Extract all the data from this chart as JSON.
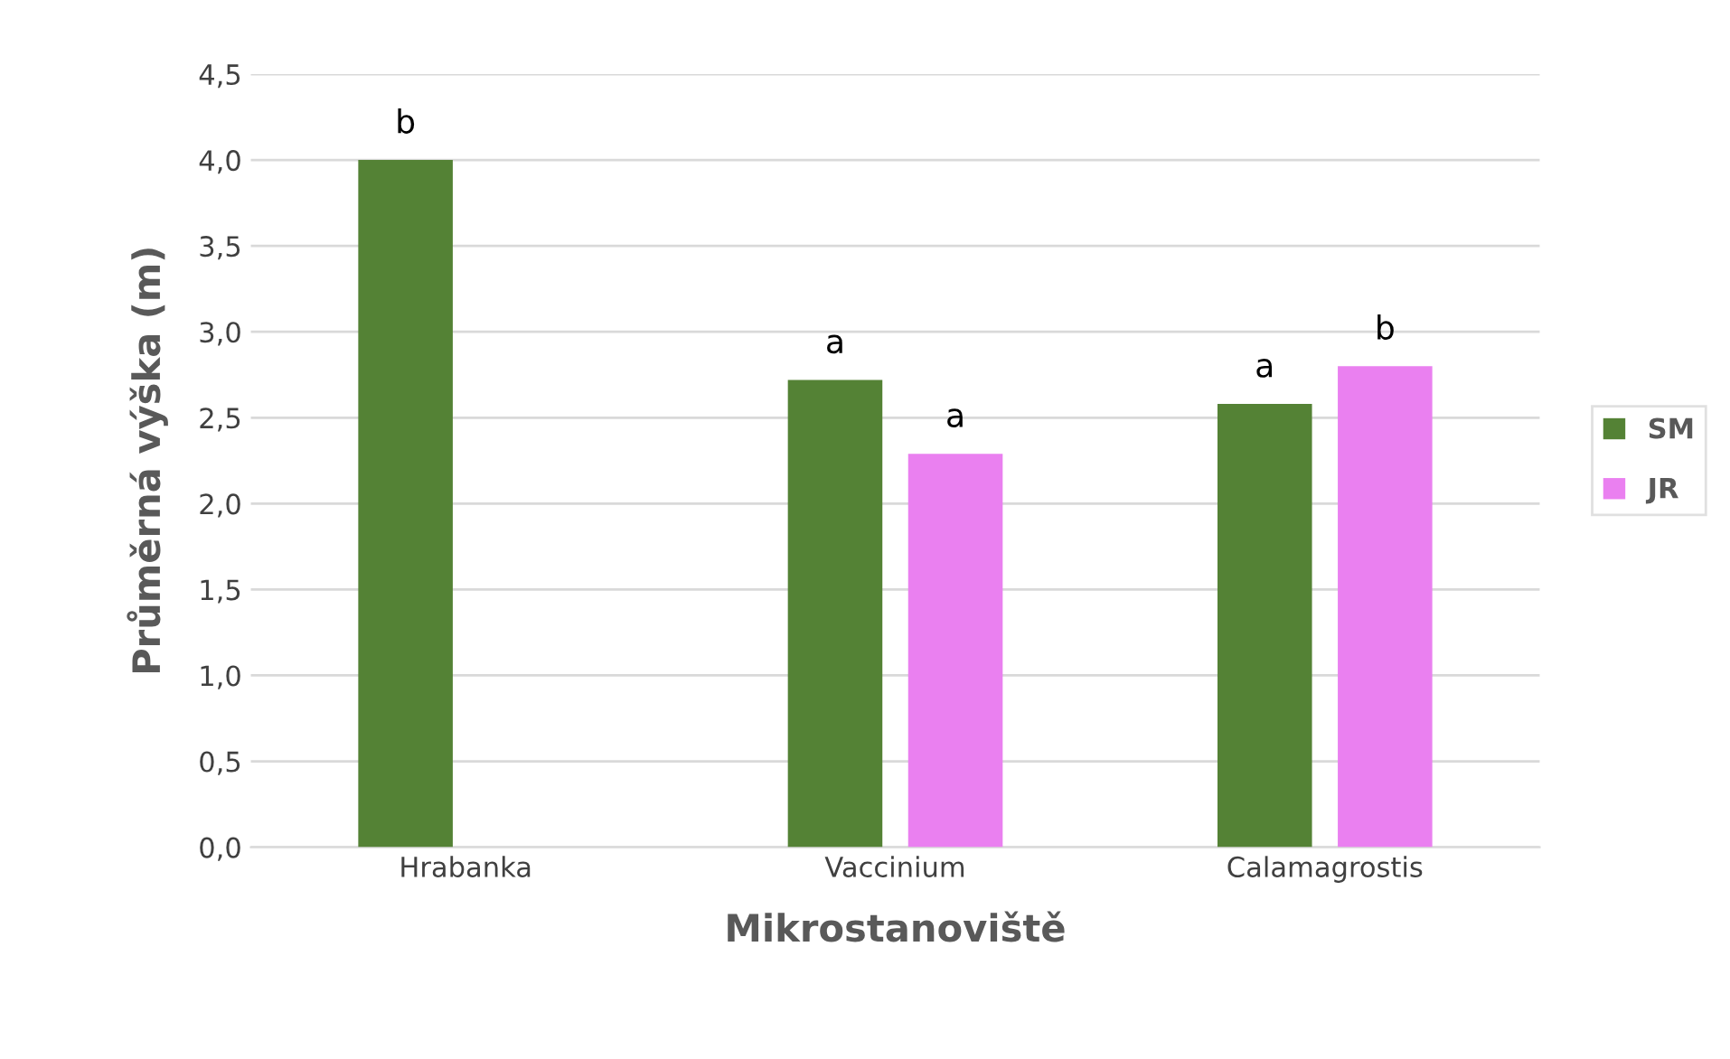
{
  "chart_data": {
    "type": "bar",
    "xlabel": "Mikrostanoviště",
    "ylabel": "Průměrná výška (m)",
    "categories": [
      "Hrabanka",
      "Vaccinium",
      "Calamagrostis"
    ],
    "series": [
      {
        "name": "SM",
        "color": "#548235",
        "values": [
          4.0,
          2.72,
          2.58
        ]
      },
      {
        "name": "JR",
        "color": "#ea80f0",
        "values": [
          null,
          2.29,
          2.8
        ]
      }
    ],
    "ylim": [
      0,
      4.5
    ],
    "yticks": [
      {
        "value": 0,
        "label": "0,0"
      },
      {
        "value": 0.5,
        "label": "0,5"
      },
      {
        "value": 1,
        "label": "1,0"
      },
      {
        "value": 1.5,
        "label": "1,5"
      },
      {
        "value": 2,
        "label": "2,0"
      },
      {
        "value": 2.5,
        "label": "2,5"
      },
      {
        "value": 3,
        "label": "3,0"
      },
      {
        "value": 3.5,
        "label": "3,5"
      },
      {
        "value": 4,
        "label": "4,0"
      },
      {
        "value": 4.5,
        "label": "4,5"
      }
    ],
    "grid": "y",
    "legend": "right",
    "annotations": [
      "b",
      "a",
      "a",
      "a",
      "b"
    ]
  }
}
